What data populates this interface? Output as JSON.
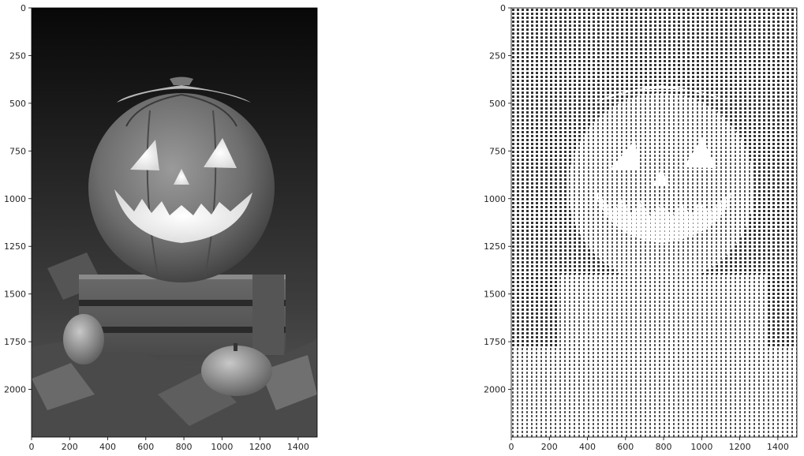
{
  "figure": {
    "panels": [
      {
        "kind": "grayscale-photo",
        "subject": "jack-o-lantern pumpkin on wooden crate with small gourds and autumn leaves",
        "xticks": [
          "0",
          "200",
          "400",
          "600",
          "800",
          "1000",
          "1200",
          "1400"
        ],
        "yticks": [
          "0",
          "250",
          "500",
          "750",
          "1000",
          "1250",
          "1500",
          "1750",
          "2000"
        ]
      },
      {
        "kind": "ascii-art-render",
        "subject": "ASCII character rendering of the same pumpkin image",
        "xticks": [
          "0",
          "200",
          "400",
          "600",
          "800",
          "1000",
          "1200",
          "1400"
        ],
        "yticks": [
          "0",
          "250",
          "500",
          "750",
          "1000",
          "1250",
          "1500",
          "1750",
          "2000"
        ]
      }
    ]
  },
  "chart_data": [
    {
      "type": "image",
      "xlim": [
        0,
        1500
      ],
      "ylim": [
        2250,
        0
      ],
      "xticks": [
        0,
        200,
        400,
        600,
        800,
        1000,
        1200,
        1400
      ],
      "yticks": [
        0,
        250,
        500,
        750,
        1000,
        1250,
        1500,
        1750,
        2000
      ]
    },
    {
      "type": "image",
      "xlim": [
        0,
        1500
      ],
      "ylim": [
        2250,
        0
      ],
      "xticks": [
        0,
        200,
        400,
        600,
        800,
        1000,
        1200,
        1400
      ],
      "yticks": [
        0,
        250,
        500,
        750,
        1000,
        1250,
        1500,
        1750,
        2000
      ]
    }
  ]
}
